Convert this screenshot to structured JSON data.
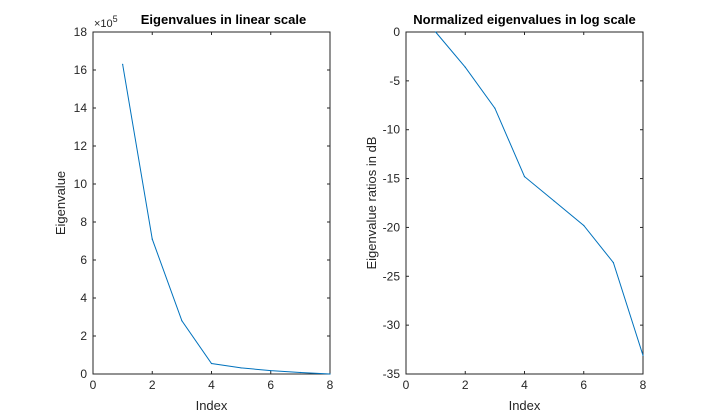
{
  "chart_data": [
    {
      "type": "line",
      "title": "Eigenvalues in linear scale",
      "xlabel": "Index",
      "ylabel": "Eigenvalue",
      "exponent_base": "×10",
      "exponent_power": "5",
      "xlim": [
        0,
        8
      ],
      "ylim": [
        0,
        18
      ],
      "xticks": [
        0,
        2,
        4,
        6,
        8
      ],
      "yticks": [
        0,
        2,
        4,
        6,
        8,
        10,
        12,
        14,
        16,
        18
      ],
      "grid": true,
      "line_color": "#0072BD",
      "x": [
        1,
        2,
        3,
        4,
        5,
        6,
        7,
        8
      ],
      "y": [
        16.3,
        7.1,
        2.8,
        0.55,
        0.32,
        0.18,
        0.08,
        0.0
      ]
    },
    {
      "type": "line",
      "title": "Normalized eigenvalues in log scale",
      "xlabel": "Index",
      "ylabel": "Eigenvalue ratios in dB",
      "xlim": [
        0,
        8
      ],
      "ylim": [
        -35,
        0
      ],
      "xticks": [
        0,
        2,
        4,
        6,
        8
      ],
      "yticks": [
        -35,
        -30,
        -25,
        -20,
        -15,
        -10,
        -5,
        0
      ],
      "grid": true,
      "line_color": "#0072BD",
      "x": [
        1,
        2,
        3,
        4,
        5,
        6,
        7,
        8
      ],
      "y": [
        0,
        -3.6,
        -7.8,
        -14.8,
        -17.3,
        -19.8,
        -23.6,
        -33.1
      ]
    }
  ]
}
